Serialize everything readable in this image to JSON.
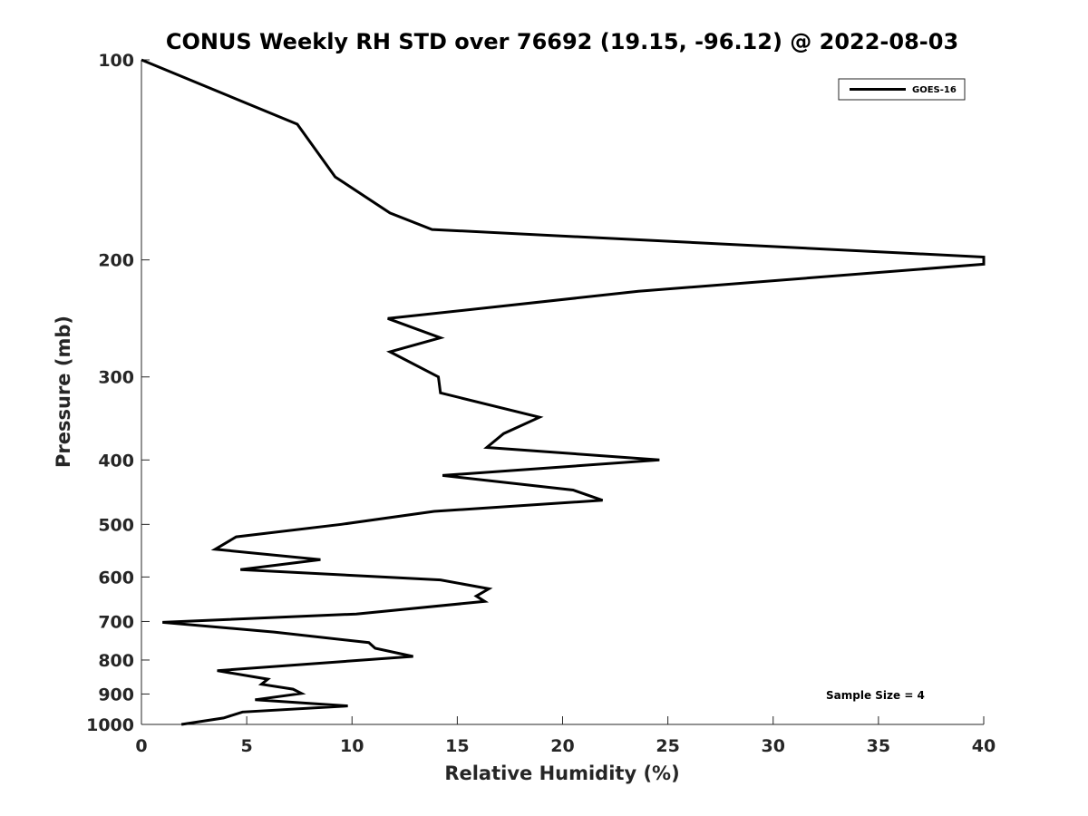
{
  "chart_data": {
    "type": "line",
    "title": "CONUS Weekly RH STD over 76692 (19.15, -96.12) @ 2022-08-03",
    "xlabel": "Relative Humidity (%)",
    "ylabel": "Pressure (mb)",
    "xlim": [
      0,
      40
    ],
    "ylim": [
      100,
      1000
    ],
    "y_scale": "log",
    "y_reversed": true,
    "x_ticks": [
      0,
      5,
      10,
      15,
      20,
      25,
      30,
      35,
      40
    ],
    "y_ticks": [
      100,
      200,
      300,
      400,
      500,
      600,
      700,
      800,
      900,
      1000
    ],
    "grid": false,
    "legend_position": "top-right",
    "annotation": "Sample Size = 4",
    "series": [
      {
        "name": "GOES-16",
        "color": "#000000",
        "points": [
          [
            0.0,
            100
          ],
          [
            7.4,
            125
          ],
          [
            9.2,
            150
          ],
          [
            11.8,
            170
          ],
          [
            13.8,
            180
          ],
          [
            40.0,
            198
          ],
          [
            40.0,
            203
          ],
          [
            23.6,
            223
          ],
          [
            11.7,
            245
          ],
          [
            14.2,
            262
          ],
          [
            11.8,
            275
          ],
          [
            14.1,
            300
          ],
          [
            14.2,
            317
          ],
          [
            18.9,
            345
          ],
          [
            17.2,
            365
          ],
          [
            16.4,
            383
          ],
          [
            24.6,
            400
          ],
          [
            14.3,
            422
          ],
          [
            20.5,
            444
          ],
          [
            21.9,
            460
          ],
          [
            13.9,
            478
          ],
          [
            9.5,
            500
          ],
          [
            4.5,
            522
          ],
          [
            3.5,
            545
          ],
          [
            8.5,
            565
          ],
          [
            4.7,
            585
          ],
          [
            14.2,
            606
          ],
          [
            16.5,
            625
          ],
          [
            15.9,
            641
          ],
          [
            16.3,
            653
          ],
          [
            10.2,
            682
          ],
          [
            1.0,
            702
          ],
          [
            6.3,
            726
          ],
          [
            10.8,
            753
          ],
          [
            11.1,
            768
          ],
          [
            12.9,
            790
          ],
          [
            3.6,
            830
          ],
          [
            6.0,
            855
          ],
          [
            5.7,
            870
          ],
          [
            7.2,
            885
          ],
          [
            7.6,
            898
          ],
          [
            5.4,
            918
          ],
          [
            9.8,
            938
          ],
          [
            4.8,
            958
          ],
          [
            3.9,
            978
          ],
          [
            1.9,
            1000
          ]
        ]
      }
    ]
  }
}
